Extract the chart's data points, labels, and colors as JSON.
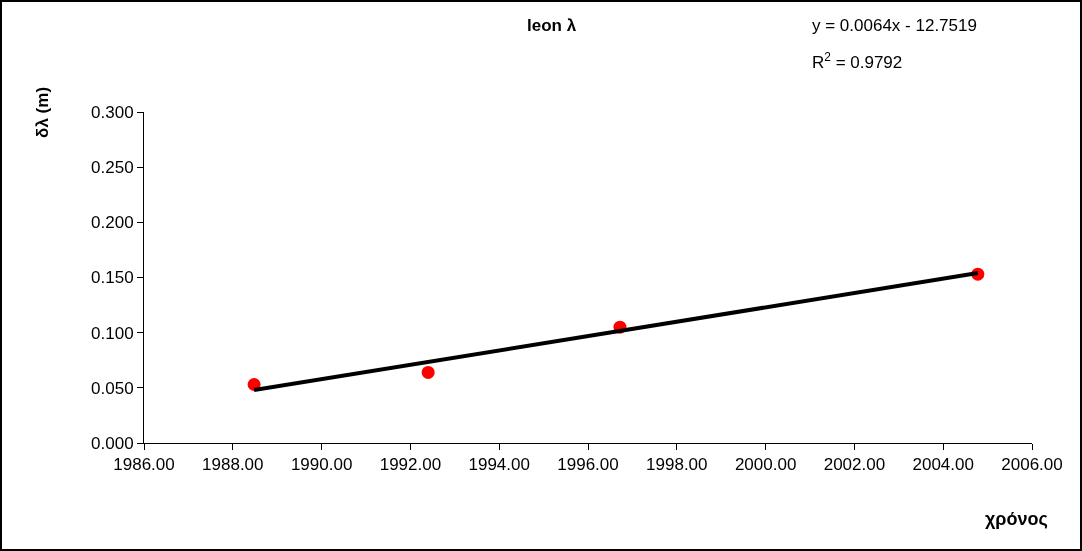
{
  "chart_data": {
    "type": "scatter",
    "title": "leon λ",
    "xlabel": "χρόνος",
    "ylabel": "δλ (m)",
    "annotations": [
      "y = 0.0064x - 12.7519",
      "R$^{2}$ = 0.9792"
    ],
    "series": [
      {
        "type": "scatter",
        "color": "#ff0000",
        "marker": "circle",
        "x": [
          1988.48,
          1992.4,
          1996.72,
          2004.78
        ],
        "values": [
          0.053,
          0.064,
          0.105,
          0.153
        ]
      },
      {
        "type": "line",
        "color": "#000000",
        "marker": "none",
        "line_style": "solid",
        "x": [
          1988.48,
          2004.78
        ],
        "values": [
          0.048,
          0.154
        ]
      }
    ],
    "xlim": [
      1986,
      2006
    ],
    "xticks": [
      {
        "value": 1986,
        "label": "1986.00"
      },
      {
        "value": 1988,
        "label": "1988.00"
      },
      {
        "value": 1990,
        "label": "1990.00"
      },
      {
        "value": 1992,
        "label": "1992.00"
      },
      {
        "value": 1994,
        "label": "1994.00"
      },
      {
        "value": 1996,
        "label": "1996.00"
      },
      {
        "value": 1998,
        "label": "1998.00"
      },
      {
        "value": 2000,
        "label": "2000.00"
      },
      {
        "value": 2002,
        "label": "2002.00"
      },
      {
        "value": 2004,
        "label": "2004.00"
      },
      {
        "value": 2006,
        "label": "2006.00"
      }
    ],
    "ylim": [
      0,
      0.3
    ],
    "yticks": [
      {
        "value": 0,
        "label": "0.000"
      },
      {
        "value": 0.05,
        "label": "0.050"
      },
      {
        "value": 0.1,
        "label": "0.100"
      },
      {
        "value": 0.15,
        "label": "0.150"
      },
      {
        "value": 0.2,
        "label": "0.200"
      },
      {
        "value": 0.25,
        "label": "0.250"
      },
      {
        "value": 0.3,
        "label": "0.300"
      }
    ],
    "grid": false,
    "legend": false
  }
}
